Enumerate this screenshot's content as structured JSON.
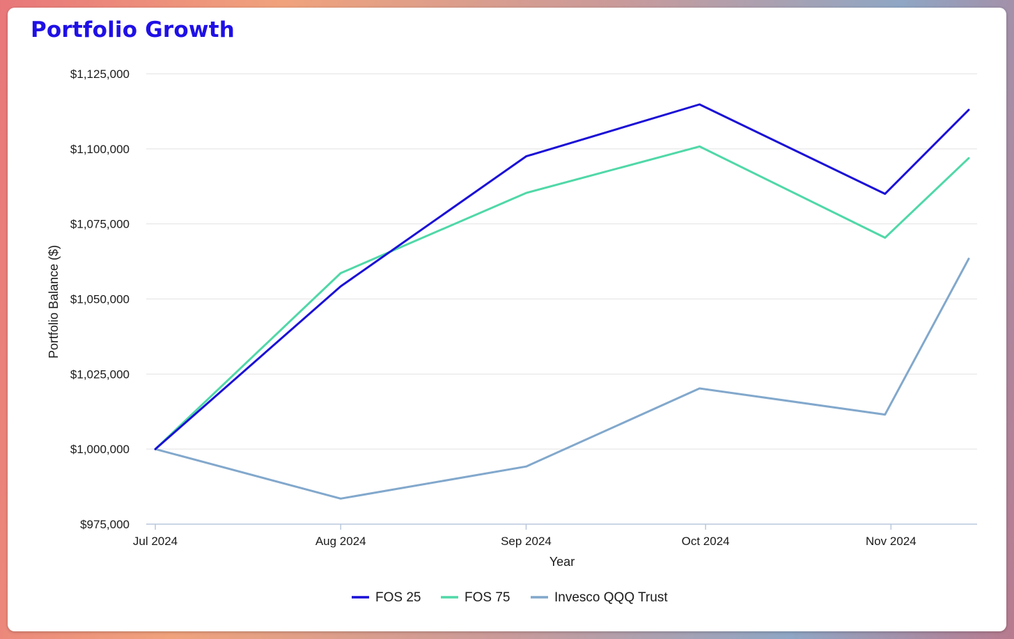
{
  "chart_data": {
    "type": "line",
    "title": "Portfolio Growth",
    "xlabel": "Year",
    "ylabel": "Portfolio Balance ($)",
    "ylim": [
      975000,
      1125000
    ],
    "yticks": [
      975000,
      1000000,
      1025000,
      1050000,
      1075000,
      1100000,
      1125000
    ],
    "ytick_labels": [
      "$975,000",
      "$1,000,000",
      "$1,025,000",
      "$1,050,000",
      "$1,075,000",
      "$1,100,000",
      "$1,125,000"
    ],
    "x": [
      "2024-07-01",
      "2024-08-01",
      "2024-09-01",
      "2024-09-30",
      "2024-10-31",
      "2024-11-14"
    ],
    "xticks": [
      "2024-07-01",
      "2024-08-01",
      "2024-09-01",
      "2024-10-01",
      "2024-11-01"
    ],
    "xtick_labels": [
      "Jul 2024",
      "Aug 2024",
      "Sep 2024",
      "Oct 2024",
      "Nov 2024"
    ],
    "series": [
      {
        "name": "FOS 25",
        "color": "#1a0fd6",
        "values": [
          1000000,
          1054200,
          1097500,
          1114800,
          1085000,
          1113000
        ]
      },
      {
        "name": "FOS 75",
        "color": "#50d8a8",
        "values": [
          1000000,
          1058600,
          1085300,
          1100800,
          1070400,
          1096900
        ]
      },
      {
        "name": "Invesco QQQ Trust",
        "color": "#82a8cc",
        "values": [
          1000000,
          983500,
          994200,
          1020200,
          1011500,
          1063400
        ]
      }
    ],
    "grid": true,
    "legend": "bottom-center"
  }
}
